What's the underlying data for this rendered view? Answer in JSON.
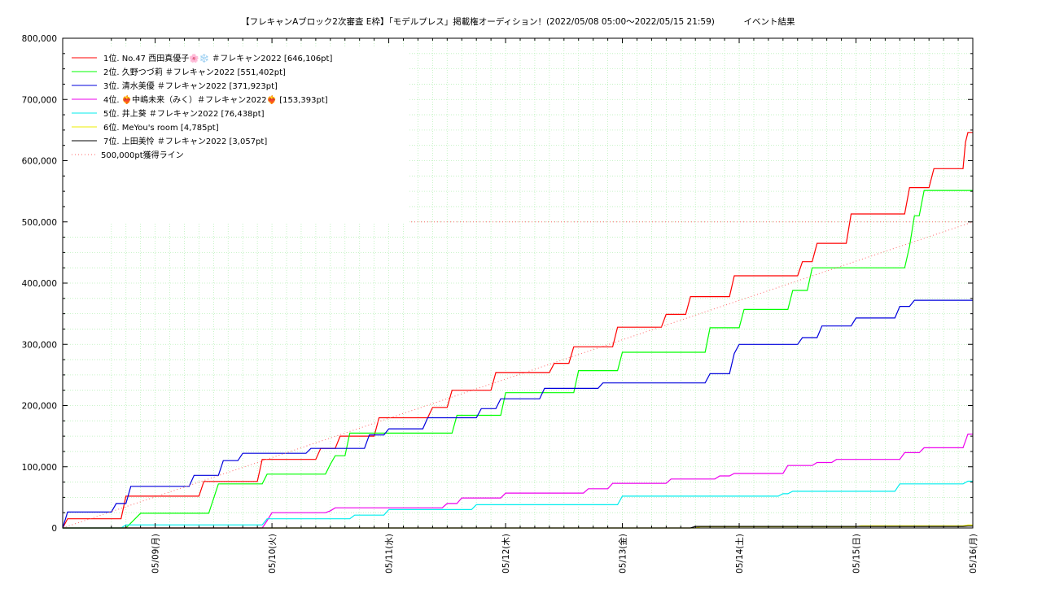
{
  "chart_data": {
    "type": "line",
    "title": "【フレキャンAブロック2次審査 E枠】「モデルプレス」掲載権オーディション！(2022/05/08 05:00～2022/05/15 21:59)",
    "subtitle": "イベント結果",
    "xlabel": "",
    "ylabel": "",
    "x_domain": [
      "2022-05-08 05:00",
      "2022-05-16 00:00"
    ],
    "ylim": [
      0,
      800000
    ],
    "y_ticks": [
      "0",
      "100,000",
      "200,000",
      "300,000",
      "400,000",
      "500,000",
      "600,000",
      "700,000",
      "800,000"
    ],
    "x_ticks": [
      {
        "t": "2022-05-09 00:00",
        "label": "05/09(月)"
      },
      {
        "t": "2022-05-10 00:00",
        "label": "05/10(火)"
      },
      {
        "t": "2022-05-11 00:00",
        "label": "05/11(水)"
      },
      {
        "t": "2022-05-12 00:00",
        "label": "05/12(木)"
      },
      {
        "t": "2022-05-13 00:00",
        "label": "05/13(金)"
      },
      {
        "t": "2022-05-14 00:00",
        "label": "05/14(土)"
      },
      {
        "t": "2022-05-15 00:00",
        "label": "05/15(日)"
      },
      {
        "t": "2022-05-16 00:00",
        "label": "05/16(月)"
      }
    ],
    "grid": true,
    "legend_position": "top-left",
    "series": [
      {
        "name": "1位. No.47 西田真優子🌸❄️ ＃フレキャン2022 [646,106pt]",
        "color": "#ff0000",
        "points": [
          [
            "2022-05-08 05:00",
            0
          ],
          [
            "2022-05-08 06:00",
            15000
          ],
          [
            "2022-05-08 17:00",
            15000
          ],
          [
            "2022-05-08 18:00",
            52000
          ],
          [
            "2022-05-09 09:00",
            52000
          ],
          [
            "2022-05-09 10:00",
            76000
          ],
          [
            "2022-05-09 21:00",
            76000
          ],
          [
            "2022-05-09 22:00",
            112000
          ],
          [
            "2022-05-10 09:00",
            112000
          ],
          [
            "2022-05-10 10:00",
            130000
          ],
          [
            "2022-05-10 13:00",
            130000
          ],
          [
            "2022-05-10 14:00",
            150000
          ],
          [
            "2022-05-10 21:00",
            150000
          ],
          [
            "2022-05-10 22:00",
            180000
          ],
          [
            "2022-05-11 08:00",
            180000
          ],
          [
            "2022-05-11 09:00",
            197000
          ],
          [
            "2022-05-11 12:00",
            197000
          ],
          [
            "2022-05-11 13:00",
            225000
          ],
          [
            "2022-05-11 21:00",
            225000
          ],
          [
            "2022-05-11 22:00",
            254000
          ],
          [
            "2022-05-12 09:00",
            254000
          ],
          [
            "2022-05-12 10:00",
            269000
          ],
          [
            "2022-05-12 13:00",
            269000
          ],
          [
            "2022-05-12 14:00",
            296000
          ],
          [
            "2022-05-12 22:00",
            296000
          ],
          [
            "2022-05-12 23:00",
            328000
          ],
          [
            "2022-05-13 08:00",
            328000
          ],
          [
            "2022-05-13 09:00",
            349000
          ],
          [
            "2022-05-13 13:00",
            349000
          ],
          [
            "2022-05-13 14:00",
            378000
          ],
          [
            "2022-05-13 22:00",
            378000
          ],
          [
            "2022-05-13 23:00",
            412000
          ],
          [
            "2022-05-14 12:00",
            412000
          ],
          [
            "2022-05-14 13:00",
            435000
          ],
          [
            "2022-05-14 15:00",
            435000
          ],
          [
            "2022-05-14 16:00",
            465000
          ],
          [
            "2022-05-14 22:00",
            465000
          ],
          [
            "2022-05-14 23:00",
            513000
          ],
          [
            "2022-05-15 10:00",
            513000
          ],
          [
            "2022-05-15 11:00",
            556000
          ],
          [
            "2022-05-15 15:00",
            556000
          ],
          [
            "2022-05-15 16:00",
            587000
          ],
          [
            "2022-05-15 22:00",
            587000
          ],
          [
            "2022-05-15 22:30",
            630000
          ],
          [
            "2022-05-15 23:00",
            646106
          ],
          [
            "2022-05-16 00:00",
            646106
          ]
        ]
      },
      {
        "name": "2位. 久野つづ莉 ＃フレキャン2022 [551,402pt]",
        "color": "#00ff00",
        "points": [
          [
            "2022-05-08 05:00",
            0
          ],
          [
            "2022-05-08 18:00",
            0
          ],
          [
            "2022-05-08 21:00",
            24000
          ],
          [
            "2022-05-09 11:00",
            24000
          ],
          [
            "2022-05-09 13:00",
            72000
          ],
          [
            "2022-05-09 22:00",
            72000
          ],
          [
            "2022-05-09 23:00",
            88000
          ],
          [
            "2022-05-10 11:00",
            88000
          ],
          [
            "2022-05-10 12:00",
            104000
          ],
          [
            "2022-05-10 13:00",
            118000
          ],
          [
            "2022-05-10 15:00",
            118000
          ],
          [
            "2022-05-10 16:00",
            155000
          ],
          [
            "2022-05-11 13:00",
            155000
          ],
          [
            "2022-05-11 14:00",
            184000
          ],
          [
            "2022-05-11 23:00",
            184000
          ],
          [
            "2022-05-12 00:00",
            221000
          ],
          [
            "2022-05-12 14:00",
            221000
          ],
          [
            "2022-05-12 15:00",
            257000
          ],
          [
            "2022-05-12 23:00",
            257000
          ],
          [
            "2022-05-13 00:00",
            287000
          ],
          [
            "2022-05-13 17:00",
            287000
          ],
          [
            "2022-05-13 18:00",
            327000
          ],
          [
            "2022-05-14 00:00",
            327000
          ],
          [
            "2022-05-14 01:00",
            357000
          ],
          [
            "2022-05-14 10:00",
            357000
          ],
          [
            "2022-05-14 11:00",
            388000
          ],
          [
            "2022-05-14 14:00",
            388000
          ],
          [
            "2022-05-14 15:00",
            425000
          ],
          [
            "2022-05-15 10:00",
            425000
          ],
          [
            "2022-05-15 11:00",
            460000
          ],
          [
            "2022-05-15 12:00",
            510000
          ],
          [
            "2022-05-15 13:00",
            510000
          ],
          [
            "2022-05-15 14:00",
            551402
          ],
          [
            "2022-05-16 00:00",
            551402
          ]
        ]
      },
      {
        "name": "3位. 清水美優 ＃フレキャン2022 [371,923pt]",
        "color": "#0000dd",
        "points": [
          [
            "2022-05-08 05:00",
            0
          ],
          [
            "2022-05-08 06:00",
            26000
          ],
          [
            "2022-05-08 15:00",
            26000
          ],
          [
            "2022-05-08 16:00",
            40000
          ],
          [
            "2022-05-08 18:00",
            40000
          ],
          [
            "2022-05-08 19:00",
            68000
          ],
          [
            "2022-05-09 07:00",
            68000
          ],
          [
            "2022-05-09 08:00",
            86000
          ],
          [
            "2022-05-09 13:00",
            86000
          ],
          [
            "2022-05-09 14:00",
            110000
          ],
          [
            "2022-05-09 17:00",
            110000
          ],
          [
            "2022-05-09 18:00",
            122000
          ],
          [
            "2022-05-10 07:00",
            122000
          ],
          [
            "2022-05-10 08:00",
            130000
          ],
          [
            "2022-05-10 19:00",
            130000
          ],
          [
            "2022-05-10 20:00",
            152000
          ],
          [
            "2022-05-10 23:00",
            152000
          ],
          [
            "2022-05-11 00:00",
            162000
          ],
          [
            "2022-05-11 07:00",
            162000
          ],
          [
            "2022-05-11 08:00",
            180000
          ],
          [
            "2022-05-11 18:00",
            180000
          ],
          [
            "2022-05-11 19:00",
            195000
          ],
          [
            "2022-05-11 22:00",
            195000
          ],
          [
            "2022-05-11 23:00",
            211000
          ],
          [
            "2022-05-12 07:00",
            211000
          ],
          [
            "2022-05-12 08:00",
            228000
          ],
          [
            "2022-05-12 19:00",
            228000
          ],
          [
            "2022-05-12 20:00",
            237000
          ],
          [
            "2022-05-13 17:00",
            237000
          ],
          [
            "2022-05-13 18:00",
            252000
          ],
          [
            "2022-05-13 22:00",
            252000
          ],
          [
            "2022-05-13 23:00",
            285000
          ],
          [
            "2022-05-14 00:00",
            300000
          ],
          [
            "2022-05-14 12:00",
            300000
          ],
          [
            "2022-05-14 13:00",
            311000
          ],
          [
            "2022-05-14 16:00",
            311000
          ],
          [
            "2022-05-14 17:00",
            330000
          ],
          [
            "2022-05-14 23:00",
            330000
          ],
          [
            "2022-05-15 00:00",
            343000
          ],
          [
            "2022-05-15 08:00",
            343000
          ],
          [
            "2022-05-15 09:00",
            362000
          ],
          [
            "2022-05-15 11:00",
            362000
          ],
          [
            "2022-05-15 12:00",
            371923
          ],
          [
            "2022-05-16 00:00",
            371923
          ]
        ]
      },
      {
        "name": "4位. ❤️‍🔥中嶋未来（みく）＃フレキャン2022❤️‍🔥 [153,393pt]",
        "color": "#ee00ee",
        "points": [
          [
            "2022-05-08 05:00",
            0
          ],
          [
            "2022-05-09 22:00",
            0
          ],
          [
            "2022-05-09 23:00",
            12000
          ],
          [
            "2022-05-10 00:00",
            25000
          ],
          [
            "2022-05-10 11:00",
            25000
          ],
          [
            "2022-05-10 12:00",
            28000
          ],
          [
            "2022-05-10 13:00",
            33000
          ],
          [
            "2022-05-11 11:00",
            33000
          ],
          [
            "2022-05-11 12:00",
            40000
          ],
          [
            "2022-05-11 14:00",
            40000
          ],
          [
            "2022-05-11 15:00",
            49000
          ],
          [
            "2022-05-11 23:00",
            49000
          ],
          [
            "2022-05-12 00:00",
            57000
          ],
          [
            "2022-05-12 16:00",
            57000
          ],
          [
            "2022-05-12 17:00",
            64000
          ],
          [
            "2022-05-12 21:00",
            64000
          ],
          [
            "2022-05-12 22:00",
            73000
          ],
          [
            "2022-05-13 09:00",
            73000
          ],
          [
            "2022-05-13 10:00",
            80000
          ],
          [
            "2022-05-13 19:00",
            80000
          ],
          [
            "2022-05-13 20:00",
            85000
          ],
          [
            "2022-05-13 22:00",
            85000
          ],
          [
            "2022-05-13 23:00",
            89000
          ],
          [
            "2022-05-14 09:00",
            89000
          ],
          [
            "2022-05-14 10:00",
            102000
          ],
          [
            "2022-05-14 15:00",
            102000
          ],
          [
            "2022-05-14 16:00",
            107000
          ],
          [
            "2022-05-14 19:00",
            107000
          ],
          [
            "2022-05-14 20:00",
            112000
          ],
          [
            "2022-05-15 09:00",
            112000
          ],
          [
            "2022-05-15 10:00",
            123000
          ],
          [
            "2022-05-15 13:00",
            123000
          ],
          [
            "2022-05-15 14:00",
            131000
          ],
          [
            "2022-05-15 22:00",
            131000
          ],
          [
            "2022-05-15 23:00",
            153393
          ],
          [
            "2022-05-16 00:00",
            153393
          ]
        ]
      },
      {
        "name": "5位. 井上葵 ＃フレキャン2022 [76,438pt]",
        "color": "#00eeee",
        "points": [
          [
            "2022-05-08 05:00",
            0
          ],
          [
            "2022-05-08 17:00",
            0
          ],
          [
            "2022-05-08 18:00",
            5000
          ],
          [
            "2022-05-09 22:00",
            5000
          ],
          [
            "2022-05-09 23:00",
            15000
          ],
          [
            "2022-05-10 16:00",
            15000
          ],
          [
            "2022-05-10 17:00",
            21000
          ],
          [
            "2022-05-10 23:00",
            21000
          ],
          [
            "2022-05-11 00:00",
            30000
          ],
          [
            "2022-05-11 17:00",
            30000
          ],
          [
            "2022-05-11 18:00",
            38000
          ],
          [
            "2022-05-12 09:00",
            38000
          ],
          [
            "2022-05-12 23:00",
            38000
          ],
          [
            "2022-05-13 00:00",
            52000
          ],
          [
            "2022-05-14 08:00",
            52000
          ],
          [
            "2022-05-14 09:00",
            56000
          ],
          [
            "2022-05-14 10:00",
            56000
          ],
          [
            "2022-05-14 11:00",
            60000
          ],
          [
            "2022-05-15 08:00",
            60000
          ],
          [
            "2022-05-15 09:00",
            72000
          ],
          [
            "2022-05-15 22:00",
            72000
          ],
          [
            "2022-05-15 23:00",
            76438
          ],
          [
            "2022-05-16 00:00",
            76438
          ]
        ]
      },
      {
        "name": "6位. MeYou's room [4,785pt]",
        "color": "#eeee00",
        "points": [
          [
            "2022-05-08 05:00",
            0
          ],
          [
            "2022-05-13 15:00",
            0
          ],
          [
            "2022-05-13 16:00",
            2000
          ],
          [
            "2022-05-15 00:00",
            2000
          ],
          [
            "2022-05-15 01:00",
            3500
          ],
          [
            "2022-05-15 22:00",
            3500
          ],
          [
            "2022-05-15 23:00",
            4785
          ],
          [
            "2022-05-16 00:00",
            4785
          ]
        ]
      },
      {
        "name": "7位. 上田美怜 ＃フレキャン2022 [3,057pt]",
        "color": "#000000",
        "points": [
          [
            "2022-05-08 05:00",
            0
          ],
          [
            "2022-05-13 14:00",
            0
          ],
          [
            "2022-05-13 15:00",
            2500
          ],
          [
            "2022-05-15 22:00",
            2500
          ],
          [
            "2022-05-15 23:00",
            3057
          ],
          [
            "2022-05-16 00:00",
            3057
          ]
        ]
      },
      {
        "name": "500,000pt獲得ライン",
        "color": "#ff6666",
        "dotted": true,
        "points": [
          [
            "2022-05-08 05:00",
            0
          ],
          [
            "2022-05-16 00:00",
            500000
          ]
        ]
      }
    ],
    "reference_lines": [
      {
        "y": 500000,
        "color": "#ff6666",
        "dotted": true
      }
    ]
  }
}
